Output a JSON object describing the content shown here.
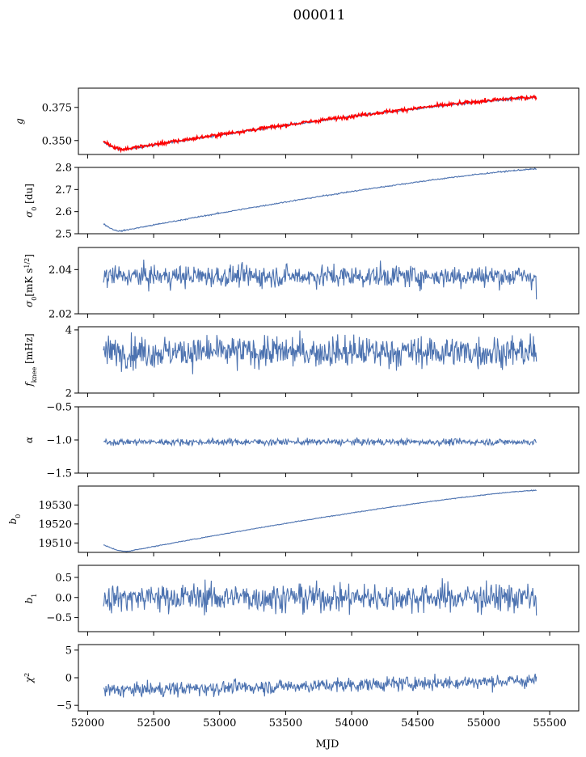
{
  "figure": {
    "title": "000011",
    "xlabel": "MJD"
  },
  "chart_data": [
    {
      "type": "line",
      "ylabel": "g",
      "xlim": [
        51930,
        55720
      ],
      "ylim": [
        0.3395,
        0.3895
      ],
      "yticks": [
        0.35,
        0.375
      ],
      "ytick_labels": [
        "0.350",
        "0.375"
      ],
      "series": [
        {
          "color": "#4c72b0",
          "start": 0.3485,
          "min": 0.3432,
          "min_x": 52280,
          "end": 0.3825,
          "noise": 0.0006
        },
        {
          "color": "#ff0000",
          "start": 0.3495,
          "min": 0.3435,
          "min_x": 52280,
          "end": 0.3828,
          "noise": 0.001
        }
      ]
    },
    {
      "type": "line",
      "ylabel": "σ0 [du]",
      "xlim": [
        51930,
        55720
      ],
      "ylim": [
        2.5,
        2.8
      ],
      "yticks": [
        2.5,
        2.6,
        2.7,
        2.8
      ],
      "ytick_labels": [
        "2.5",
        "2.6",
        "2.7",
        "2.8"
      ],
      "series": [
        {
          "color": "#4c72b0",
          "start": 2.545,
          "min": 2.512,
          "min_x": 52250,
          "end": 2.793,
          "noise": 0.002
        }
      ]
    },
    {
      "type": "line",
      "ylabel": "σ0[mK s1/2]",
      "xlim": [
        51930,
        55720
      ],
      "ylim": [
        2.02,
        2.05
      ],
      "yticks": [
        2.02,
        2.04
      ],
      "ytick_labels": [
        "2.02",
        "2.04"
      ],
      "series": [
        {
          "color": "#4c72b0",
          "mean": 2.037,
          "noise": 0.0035,
          "range": [
            2.0225,
            2.0445
          ],
          "last": 2.0265
        }
      ]
    },
    {
      "type": "line",
      "ylabel": "fknee [mHz]",
      "xlim": [
        51930,
        55720
      ],
      "ylim": [
        2.0,
        4.1
      ],
      "yticks": [
        2,
        4
      ],
      "ytick_labels": [
        "2",
        "4"
      ],
      "series": [
        {
          "color": "#4c72b0",
          "mean": 3.3,
          "noise": 0.35,
          "range": [
            2.5,
            4.1
          ],
          "last": 3.0
        }
      ]
    },
    {
      "type": "line",
      "ylabel": "α",
      "xlim": [
        51930,
        55720
      ],
      "ylim": [
        -1.5,
        -0.5
      ],
      "yticks": [
        -1.5,
        -1.0,
        -0.5
      ],
      "ytick_labels": [
        "−1.5",
        "−1.0",
        "−0.5"
      ],
      "series": [
        {
          "color": "#4c72b0",
          "mean": -1.03,
          "noise": 0.035,
          "range": [
            -1.14,
            -0.86
          ],
          "last": -1.04
        }
      ]
    },
    {
      "type": "line",
      "ylabel": "b0",
      "xlim": [
        51930,
        55720
      ],
      "ylim": [
        19505,
        19540
      ],
      "yticks": [
        19510,
        19520,
        19530
      ],
      "ytick_labels": [
        "19510",
        "19520",
        "19530"
      ],
      "series": [
        {
          "color": "#4c72b0",
          "start": 19509,
          "min": 19505.5,
          "min_x": 52300,
          "end": 19537.8,
          "noise": 0.15
        }
      ]
    },
    {
      "type": "line",
      "ylabel": "b1",
      "xlim": [
        51930,
        55720
      ],
      "ylim": [
        -0.85,
        0.8
      ],
      "yticks": [
        -0.5,
        0.0,
        0.5
      ],
      "ytick_labels": [
        "−0.5",
        "0.0",
        "0.5"
      ],
      "series": [
        {
          "color": "#4c72b0",
          "mean": 0.0,
          "noise": 0.25,
          "range": [
            -0.75,
            0.72
          ],
          "last": -0.45
        }
      ]
    },
    {
      "type": "line",
      "ylabel": "χ2",
      "xlim": [
        51930,
        55720
      ],
      "ylim": [
        -6,
        6
      ],
      "yticks": [
        -5,
        0,
        5
      ],
      "ytick_labels": [
        "−5",
        "0",
        "5"
      ],
      "series": [
        {
          "color": "#4c72b0",
          "start": -2.3,
          "end": -0.5,
          "noise": 0.9,
          "range": [
            -5.5,
            1.0
          ],
          "last": 0.2
        }
      ]
    }
  ],
  "x_range": [
    52120,
    55400
  ],
  "xticks": [
    52000,
    52500,
    53000,
    53500,
    54000,
    54500,
    55000,
    55500
  ],
  "xtick_labels": [
    "52000",
    "52500",
    "53000",
    "53500",
    "54000",
    "54500",
    "55000",
    "55500"
  ]
}
